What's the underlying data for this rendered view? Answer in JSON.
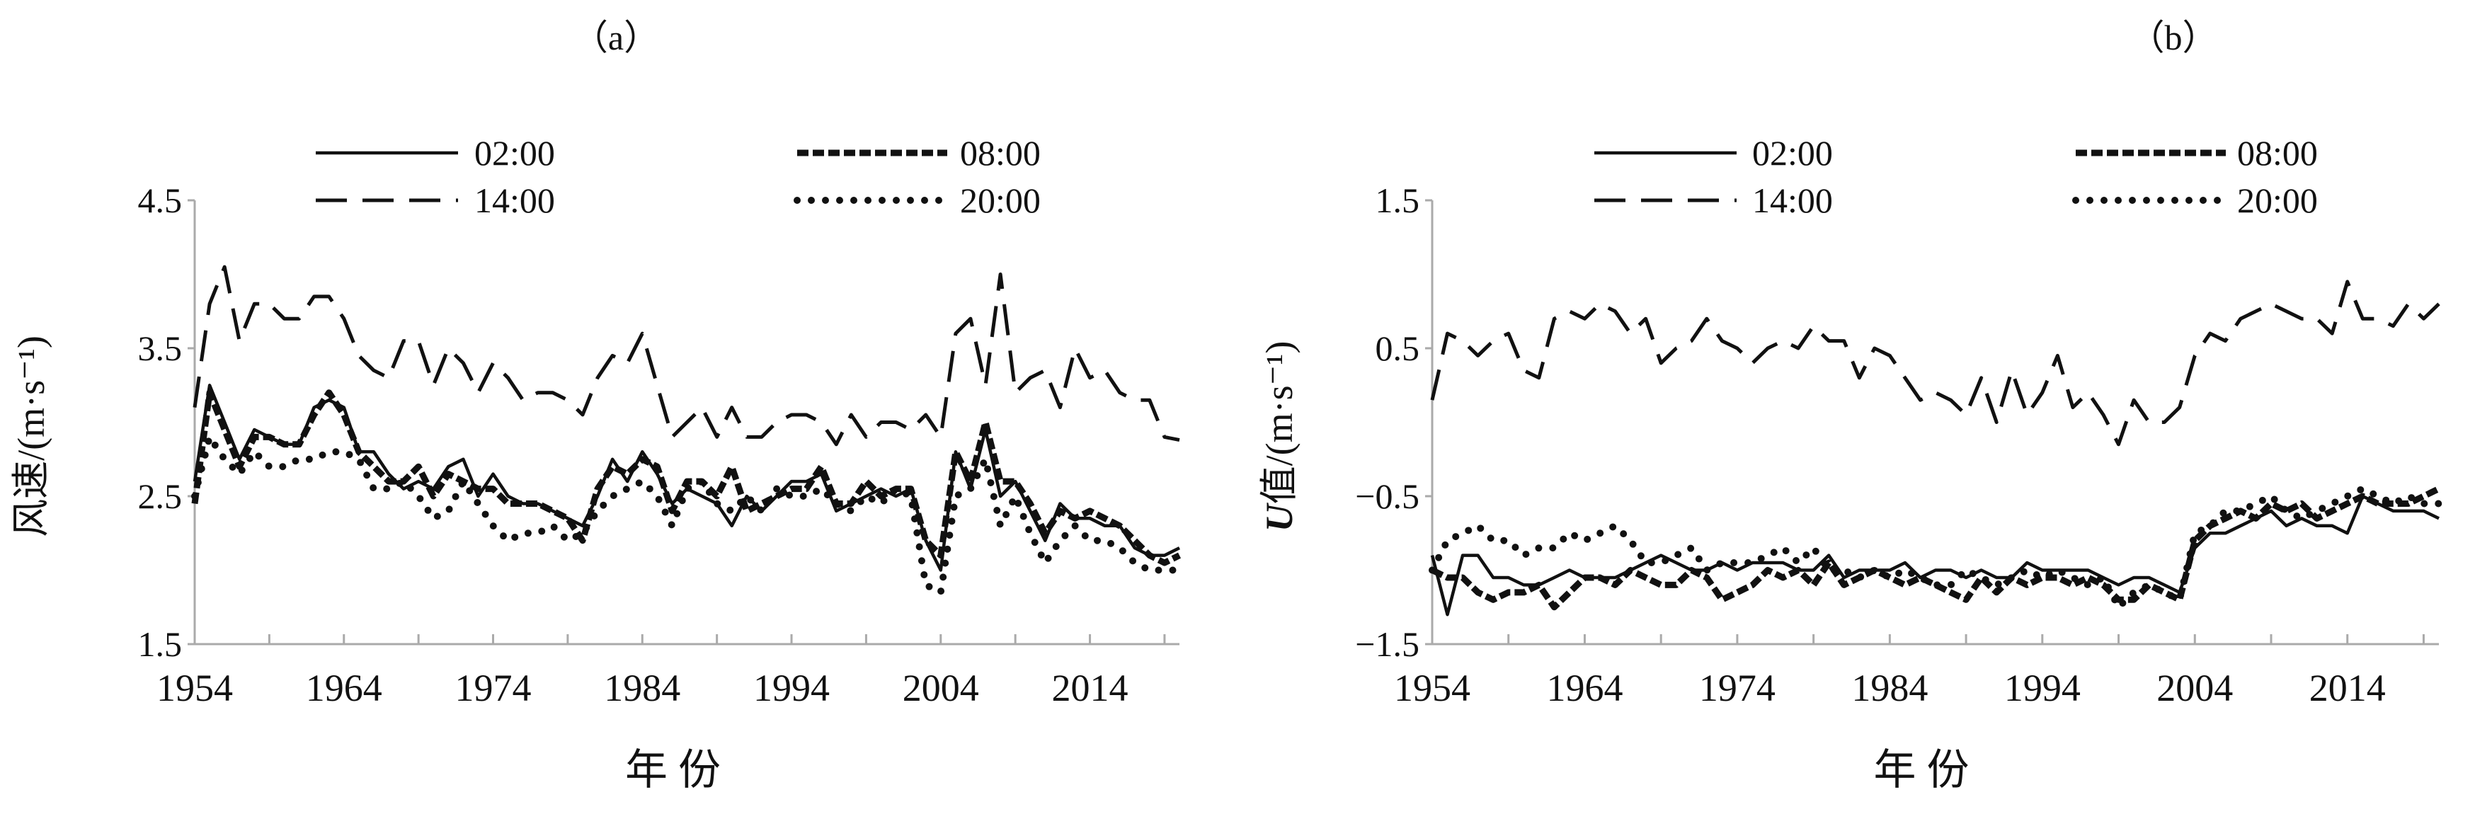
{
  "chart_data": [
    {
      "type": "line",
      "title": "（a）",
      "xlabel": "年 份",
      "ylabel": "风速/(m·s⁻¹)",
      "ylim": [
        1.5,
        4.5
      ],
      "yticks": [
        "1.5",
        "2.5",
        "3.5",
        "4.5"
      ],
      "xticks": [
        "1954",
        "1964",
        "1974",
        "1984",
        "1994",
        "2004",
        "2014"
      ],
      "x_start": 1954,
      "x_end": 2020,
      "legend_position": "top",
      "series": [
        {
          "name": "02:00",
          "style": "solid",
          "values": [
            2.6,
            3.25,
            3.0,
            2.75,
            2.95,
            2.9,
            2.85,
            2.85,
            3.1,
            3.15,
            3.1,
            2.8,
            2.8,
            2.65,
            2.55,
            2.6,
            2.55,
            2.7,
            2.75,
            2.5,
            2.65,
            2.5,
            2.45,
            2.45,
            2.4,
            2.35,
            2.3,
            2.5,
            2.75,
            2.6,
            2.8,
            2.65,
            2.45,
            2.55,
            2.5,
            2.45,
            2.3,
            2.5,
            2.4,
            2.5,
            2.6,
            2.6,
            2.65,
            2.4,
            2.45,
            2.5,
            2.55,
            2.5,
            2.55,
            2.2,
            2.0,
            2.8,
            2.55,
            2.95,
            2.5,
            2.6,
            2.4,
            2.2,
            2.45,
            2.35,
            2.35,
            2.3,
            2.3,
            2.15,
            2.1,
            2.1,
            2.15
          ]
        },
        {
          "name": "08:00",
          "style": "thick-dash",
          "values": [
            2.45,
            3.2,
            2.95,
            2.7,
            2.9,
            2.9,
            2.85,
            2.85,
            3.05,
            3.2,
            3.05,
            2.8,
            2.7,
            2.6,
            2.6,
            2.7,
            2.5,
            2.65,
            2.6,
            2.55,
            2.55,
            2.45,
            2.45,
            2.45,
            2.4,
            2.35,
            2.2,
            2.55,
            2.7,
            2.65,
            2.75,
            2.7,
            2.4,
            2.6,
            2.6,
            2.5,
            2.7,
            2.4,
            2.45,
            2.5,
            2.55,
            2.55,
            2.7,
            2.45,
            2.45,
            2.6,
            2.5,
            2.55,
            2.55,
            2.2,
            2.1,
            2.8,
            2.6,
            3.0,
            2.6,
            2.6,
            2.45,
            2.25,
            2.4,
            2.35,
            2.4,
            2.35,
            2.3,
            2.2,
            2.1,
            2.05,
            2.1
          ]
        },
        {
          "name": "14:00",
          "style": "long-dash",
          "values": [
            3.1,
            3.8,
            4.05,
            3.55,
            3.8,
            3.8,
            3.7,
            3.7,
            3.85,
            3.85,
            3.7,
            3.45,
            3.35,
            3.3,
            3.55,
            3.55,
            3.25,
            3.5,
            3.4,
            3.2,
            3.4,
            3.3,
            3.15,
            3.2,
            3.2,
            3.15,
            3.05,
            3.3,
            3.45,
            3.4,
            3.6,
            3.25,
            2.9,
            3.0,
            3.1,
            2.9,
            3.1,
            2.9,
            2.9,
            3.0,
            3.05,
            3.05,
            3.0,
            2.85,
            3.05,
            2.9,
            3.0,
            3.0,
            2.95,
            3.05,
            2.9,
            3.6,
            3.7,
            3.25,
            4.0,
            3.2,
            3.3,
            3.35,
            3.1,
            3.5,
            3.3,
            3.35,
            3.2,
            3.15,
            3.15,
            2.9,
            2.88
          ]
        },
        {
          "name": "20:00",
          "style": "dotted",
          "values": [
            2.5,
            2.9,
            2.75,
            2.65,
            2.8,
            2.7,
            2.7,
            2.75,
            2.75,
            2.8,
            2.8,
            2.75,
            2.55,
            2.55,
            2.6,
            2.5,
            2.35,
            2.4,
            2.6,
            2.45,
            2.3,
            2.2,
            2.25,
            2.25,
            2.3,
            2.2,
            2.25,
            2.4,
            2.5,
            2.55,
            2.6,
            2.5,
            2.3,
            2.55,
            2.6,
            2.45,
            2.4,
            2.5,
            2.4,
            2.55,
            2.5,
            2.5,
            2.55,
            2.45,
            2.4,
            2.5,
            2.45,
            2.55,
            2.5,
            1.9,
            1.85,
            2.5,
            2.55,
            2.75,
            2.3,
            2.5,
            2.25,
            2.05,
            2.2,
            2.3,
            2.2,
            2.2,
            2.15,
            2.05,
            2.0,
            2.0,
            2.0
          ]
        }
      ]
    },
    {
      "type": "line",
      "title": "（b）",
      "xlabel": "年 份",
      "ylabel_italic": "U",
      "ylabel": "值/(m·s⁻¹)",
      "ylim": [
        -1.5,
        1.5
      ],
      "yticks": [
        "−1.5",
        "−0.5",
        "0.5",
        "1.5"
      ],
      "xticks": [
        "1954",
        "1964",
        "1974",
        "1984",
        "1994",
        "2004",
        "2014"
      ],
      "x_start": 1954,
      "x_end": 2020,
      "legend_position": "top",
      "series": [
        {
          "name": "02:00",
          "style": "solid",
          "values": [
            -0.9,
            -1.3,
            -0.9,
            -0.9,
            -1.05,
            -1.05,
            -1.1,
            -1.1,
            -1.05,
            -1.0,
            -1.05,
            -1.05,
            -1.05,
            -1.0,
            -0.95,
            -0.9,
            -0.95,
            -1.0,
            -1.0,
            -0.95,
            -1.0,
            -0.95,
            -0.95,
            -0.95,
            -1.0,
            -1.0,
            -0.9,
            -1.05,
            -1.0,
            -1.0,
            -1.0,
            -0.95,
            -1.05,
            -1.0,
            -1.0,
            -1.05,
            -1.0,
            -1.05,
            -1.05,
            -0.95,
            -1.0,
            -1.0,
            -1.0,
            -1.0,
            -1.05,
            -1.1,
            -1.05,
            -1.05,
            -1.1,
            -1.15,
            -0.85,
            -0.75,
            -0.75,
            -0.7,
            -0.65,
            -0.6,
            -0.7,
            -0.65,
            -0.7,
            -0.7,
            -0.75,
            -0.5,
            -0.55,
            -0.6,
            -0.6,
            -0.6,
            -0.65
          ]
        },
        {
          "name": "08:00",
          "style": "thick-dash",
          "values": [
            -1.0,
            -1.05,
            -1.05,
            -1.15,
            -1.2,
            -1.15,
            -1.15,
            -1.1,
            -1.25,
            -1.15,
            -1.05,
            -1.05,
            -1.1,
            -1.0,
            -1.05,
            -1.1,
            -1.1,
            -1.0,
            -1.05,
            -1.2,
            -1.15,
            -1.1,
            -1.0,
            -1.05,
            -1.0,
            -1.1,
            -0.95,
            -1.1,
            -1.05,
            -1.0,
            -1.05,
            -1.1,
            -1.05,
            -1.1,
            -1.15,
            -1.2,
            -1.05,
            -1.15,
            -1.05,
            -1.1,
            -1.05,
            -1.05,
            -1.1,
            -1.05,
            -1.1,
            -1.2,
            -1.2,
            -1.1,
            -1.15,
            -1.2,
            -0.8,
            -0.7,
            -0.65,
            -0.6,
            -0.65,
            -0.55,
            -0.6,
            -0.55,
            -0.65,
            -0.6,
            -0.55,
            -0.5,
            -0.55,
            -0.55,
            -0.55,
            -0.5,
            -0.45
          ]
        },
        {
          "name": "14:00",
          "style": "long-dash",
          "values": [
            0.15,
            0.6,
            0.55,
            0.45,
            0.55,
            0.6,
            0.35,
            0.3,
            0.7,
            0.75,
            0.7,
            0.8,
            0.75,
            0.6,
            0.7,
            0.4,
            0.5,
            0.55,
            0.7,
            0.55,
            0.5,
            0.4,
            0.5,
            0.55,
            0.5,
            0.65,
            0.55,
            0.55,
            0.3,
            0.5,
            0.45,
            0.3,
            0.15,
            0.2,
            0.15,
            0.05,
            0.3,
            0.0,
            0.35,
            0.05,
            0.2,
            0.45,
            0.1,
            0.2,
            0.05,
            -0.15,
            0.15,
            0.0,
            0.0,
            0.1,
            0.45,
            0.6,
            0.55,
            0.7,
            0.75,
            0.8,
            0.75,
            0.7,
            0.7,
            0.6,
            0.95,
            0.7,
            0.7,
            0.65,
            0.8,
            0.7,
            0.8
          ]
        },
        {
          "name": "20:00",
          "style": "dotted",
          "values": [
            -1.0,
            -0.8,
            -0.75,
            -0.7,
            -0.8,
            -0.8,
            -0.9,
            -0.85,
            -0.85,
            -0.75,
            -0.8,
            -0.75,
            -0.7,
            -0.8,
            -0.95,
            -0.95,
            -0.9,
            -0.85,
            -1.0,
            -0.95,
            -0.95,
            -0.95,
            -0.9,
            -0.85,
            -0.95,
            -0.85,
            -1.0,
            -1.0,
            -1.05,
            -1.0,
            -1.05,
            -1.0,
            -1.05,
            -1.1,
            -1.1,
            -1.0,
            -1.05,
            -1.1,
            -1.05,
            -1.0,
            -1.05,
            -1.0,
            -1.05,
            -1.1,
            -1.05,
            -1.25,
            -1.15,
            -1.1,
            -1.15,
            -1.2,
            -0.75,
            -0.7,
            -0.6,
            -0.6,
            -0.55,
            -0.5,
            -0.6,
            -0.65,
            -0.6,
            -0.55,
            -0.5,
            -0.45,
            -0.5,
            -0.55,
            -0.5,
            -0.55,
            -0.55
          ]
        }
      ]
    }
  ]
}
